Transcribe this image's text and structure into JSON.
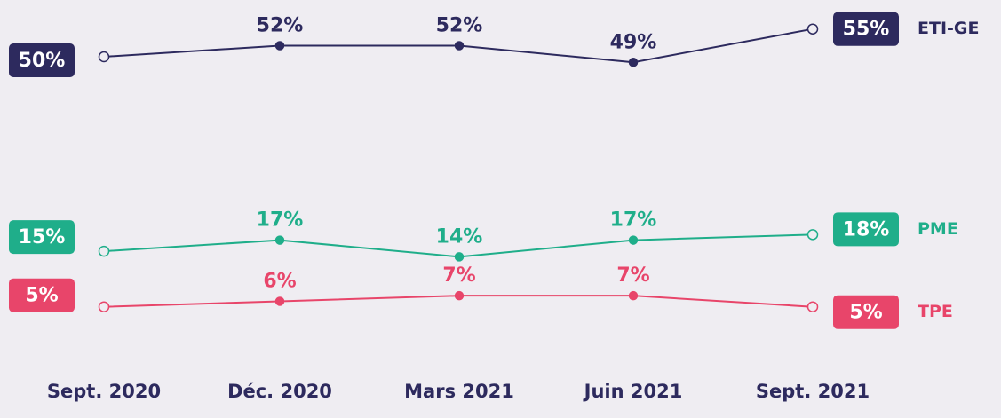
{
  "chart_data": {
    "type": "line",
    "categories": [
      "Sept. 2020",
      "Déc. 2020",
      "Mars 2021",
      "Juin 2021",
      "Sept. 2021"
    ],
    "series": [
      {
        "name": "ETI-GE",
        "color": "#2d2a5e",
        "values": [
          50,
          52,
          52,
          49,
          55
        ],
        "value_labels": [
          "50%",
          "52%",
          "52%",
          "49%",
          "55%"
        ]
      },
      {
        "name": "PME",
        "color": "#1fae8a",
        "values": [
          15,
          17,
          14,
          17,
          18
        ],
        "value_labels": [
          "15%",
          "17%",
          "14%",
          "17%",
          "18%"
        ]
      },
      {
        "name": "TPE",
        "color": "#e8456a",
        "values": [
          5,
          6,
          7,
          7,
          5
        ],
        "value_labels": [
          "5%",
          "6%",
          "7%",
          "7%",
          "5%"
        ]
      }
    ]
  }
}
